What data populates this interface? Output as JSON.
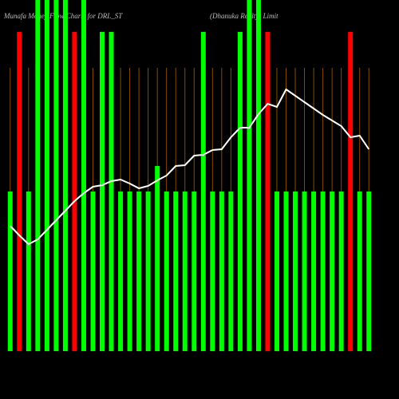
{
  "chart_data": {
    "type": "bar",
    "title": "Munafa Money Flow Charts for DRL_ST",
    "subtitle": "(Dhanuka Realty) Limit",
    "categories": [
      null,
      null,
      null,
      null,
      null,
      null,
      null,
      null,
      null,
      null,
      null,
      null,
      null,
      null,
      null,
      null,
      null,
      null,
      null,
      null,
      null,
      null,
      null,
      null,
      null,
      null,
      null,
      null,
      null,
      null,
      null,
      null,
      null,
      null,
      null,
      null,
      null,
      null,
      null,
      null
    ],
    "series": [
      {
        "colors": [
          "#00ff00",
          "#ff0000",
          "#00ff00",
          "#00ff00",
          "#00ff00",
          "#00ff00",
          "#00ff00",
          "#ff0000",
          "#00ff00",
          "#00ff00",
          "#00ff00",
          "#00ff00",
          "#00ff00",
          "#00ff00",
          "#00ff00",
          "#00ff00",
          "#00ff00",
          "#00ff00",
          "#00ff00",
          "#00ff00",
          "#00ff00",
          "#00ff00",
          "#00ff00",
          "#00ff00",
          "#00ff00",
          "#00ff00",
          "#00ff00",
          "#00ff00",
          "#ff0000",
          "#00ff00",
          "#00ff00",
          "#00ff00",
          "#00ff00",
          "#00ff00",
          "#00ff00",
          "#00ff00",
          "#00ff00",
          "#ff0000",
          "#00ff00",
          "#00ff00"
        ],
        "values": [
          200,
          400,
          200,
          440,
          440,
          440,
          440,
          400,
          440,
          200,
          400,
          400,
          200,
          200,
          200,
          200,
          232,
          200,
          200,
          200,
          200,
          400,
          200,
          200,
          200,
          400,
          440,
          440,
          400,
          200,
          200,
          200,
          200,
          200,
          200,
          200,
          200,
          400,
          200,
          200
        ]
      },
      {
        "type": "line",
        "color": "#ffffff",
        "values": [
          157,
          145,
          134,
          140,
          152,
          164,
          176,
          188,
          198,
          206,
          208,
          213,
          215,
          210,
          204,
          207,
          214,
          220,
          232,
          233,
          245,
          246,
          252,
          253,
          268,
          280,
          280,
          297,
          310,
          306,
          328,
          320,
          312,
          304,
          296,
          289,
          282,
          268,
          270,
          253
        ]
      }
    ],
    "ylim": [
      0,
      440
    ]
  }
}
